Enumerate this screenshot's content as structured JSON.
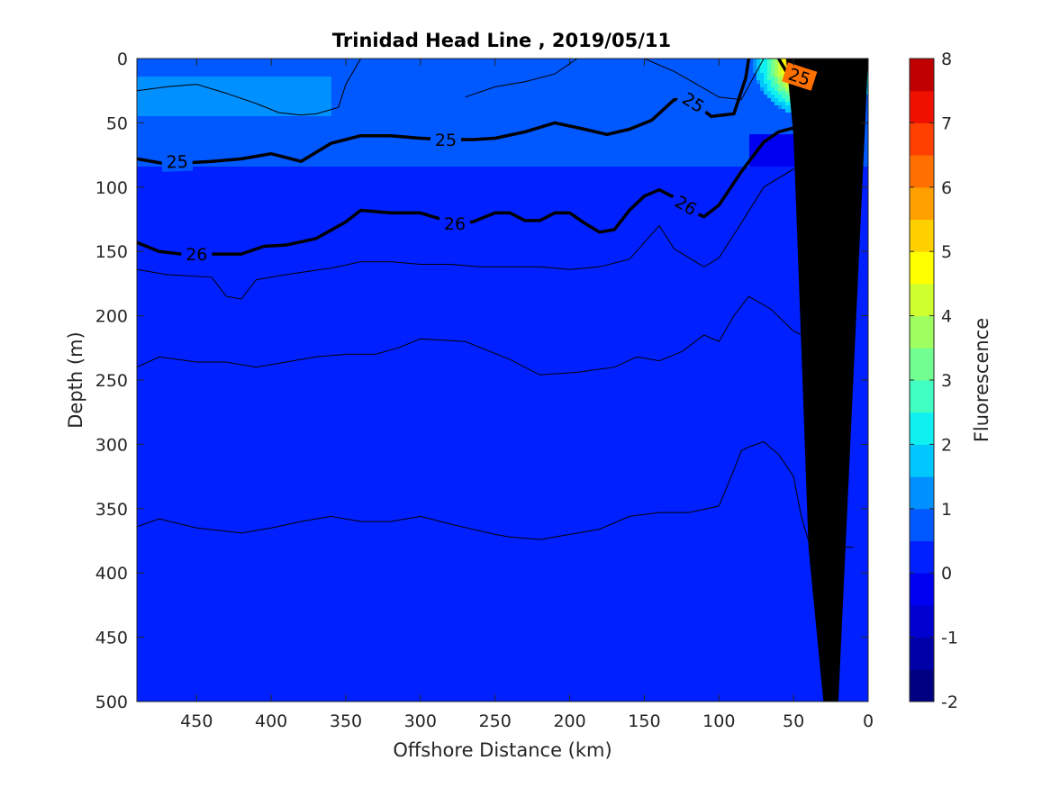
{
  "chart_data": {
    "type": "heatmap",
    "subtype": "filled-contour section",
    "title": "Trinidad Head Line , 2019/05/11",
    "xlabel": "Offshore Distance (km)",
    "ylabel": "Depth (m)",
    "xlim": [
      490,
      0
    ],
    "xdir": "reversed",
    "ylim": [
      0,
      500
    ],
    "ydir": "reversed",
    "x_ticks": [
      "450",
      "400",
      "350",
      "300",
      "250",
      "200",
      "150",
      "100",
      "50",
      "0"
    ],
    "x_tick_values": [
      450,
      400,
      350,
      300,
      250,
      200,
      150,
      100,
      50,
      0
    ],
    "y_ticks": [
      "0",
      "50",
      "100",
      "150",
      "200",
      "250",
      "300",
      "350",
      "400",
      "450",
      "500"
    ],
    "y_tick_values": [
      0,
      50,
      100,
      150,
      200,
      250,
      300,
      350,
      400,
      450,
      500
    ],
    "grid": false,
    "colorbar": {
      "label": "Fluorescence",
      "range": [
        -2,
        8
      ],
      "ticks": [
        "8",
        "7",
        "6",
        "5",
        "4",
        "3",
        "2",
        "1",
        "0",
        "-1",
        "-2"
      ],
      "tick_values": [
        8,
        7,
        6,
        5,
        4,
        3,
        2,
        1,
        0,
        -1,
        -2
      ],
      "levels": [
        -2,
        -1.5,
        -1,
        -0.5,
        0,
        0.5,
        1,
        1.5,
        2,
        2.5,
        3,
        3.5,
        4,
        4.5,
        5,
        5.5,
        6,
        6.5,
        7,
        7.5,
        8
      ],
      "colors": [
        "#000080",
        "#0000a8",
        "#0000d0",
        "#0000f0",
        "#0020ff",
        "#0058ff",
        "#0090ff",
        "#00c8ff",
        "#10f0f0",
        "#40ffc0",
        "#70ff90",
        "#a0ff60",
        "#d0ff30",
        "#ffff00",
        "#ffd000",
        "#ffa000",
        "#ff7000",
        "#ff4000",
        "#f01000",
        "#c00000"
      ]
    },
    "fluorescence_regions": [
      {
        "name": "surface band",
        "x_range": [
          490,
          0
        ],
        "depth_range": [
          0,
          85
        ],
        "value_range": [
          0.5,
          1.0
        ]
      },
      {
        "name": "near-surface maximum",
        "x_range": [
          500,
          360
        ],
        "depth_range": [
          15,
          45
        ],
        "value_range": [
          1.0,
          1.5
        ]
      },
      {
        "name": "coastal bloom",
        "x_range": [
          75,
          10
        ],
        "depth_range": [
          0,
          45
        ],
        "value_range": [
          2,
          8
        ],
        "peak": {
          "x": 35,
          "depth": 5,
          "value": 7.5
        }
      },
      {
        "name": "subsurface low",
        "x_range": [
          80,
          10
        ],
        "depth_range": [
          60,
          85
        ],
        "value_range": [
          -0.5,
          0
        ]
      },
      {
        "name": "deep water",
        "x_range": [
          490,
          0
        ],
        "depth_range": [
          85,
          500
        ],
        "value_range": [
          0,
          0.5
        ]
      }
    ],
    "density_contours": [
      {
        "level": "25",
        "points": [
          [
            490,
            78
          ],
          [
            470,
            82
          ],
          [
            440,
            80
          ],
          [
            420,
            78
          ],
          [
            400,
            74
          ],
          [
            380,
            80
          ],
          [
            360,
            66
          ],
          [
            340,
            60
          ],
          [
            320,
            60
          ],
          [
            300,
            62
          ],
          [
            280,
            63
          ],
          [
            265,
            63
          ],
          [
            250,
            62
          ],
          [
            230,
            57
          ],
          [
            210,
            50
          ],
          [
            190,
            55
          ],
          [
            175,
            59
          ],
          [
            160,
            55
          ],
          [
            145,
            48
          ],
          [
            130,
            32
          ],
          [
            120,
            32
          ],
          [
            105,
            45
          ],
          [
            90,
            43
          ],
          [
            82,
            15
          ],
          [
            80,
            0
          ]
        ]
      },
      {
        "level": "25",
        "points": [
          [
            60,
            0
          ],
          [
            55,
            10
          ],
          [
            45,
            15
          ],
          [
            35,
            14
          ],
          [
            25,
            0
          ]
        ]
      },
      {
        "level": "26",
        "points": [
          [
            490,
            143
          ],
          [
            475,
            150
          ],
          [
            460,
            152
          ],
          [
            440,
            152
          ],
          [
            420,
            152
          ],
          [
            405,
            146
          ],
          [
            390,
            145
          ],
          [
            370,
            140
          ],
          [
            350,
            127
          ],
          [
            340,
            118
          ],
          [
            320,
            120
          ],
          [
            300,
            120
          ],
          [
            280,
            127
          ],
          [
            265,
            127
          ],
          [
            250,
            120
          ],
          [
            240,
            120
          ],
          [
            230,
            126
          ],
          [
            220,
            126
          ],
          [
            210,
            120
          ],
          [
            200,
            120
          ],
          [
            190,
            128
          ],
          [
            180,
            135
          ],
          [
            170,
            133
          ],
          [
            160,
            118
          ],
          [
            150,
            107
          ],
          [
            140,
            102
          ],
          [
            130,
            108
          ],
          [
            120,
            118
          ],
          [
            110,
            123
          ],
          [
            100,
            114
          ],
          [
            85,
            88
          ],
          [
            70,
            65
          ],
          [
            60,
            57
          ],
          [
            50,
            54
          ],
          [
            40,
            53
          ],
          [
            20,
            53
          ],
          [
            10,
            53
          ]
        ]
      }
    ],
    "thin_contours": [
      [
        [
          490,
          164
        ],
        [
          470,
          168
        ],
        [
          440,
          170
        ],
        [
          430,
          185
        ],
        [
          420,
          187
        ],
        [
          410,
          172
        ],
        [
          390,
          168
        ],
        [
          360,
          163
        ],
        [
          340,
          158
        ],
        [
          320,
          158
        ],
        [
          300,
          160
        ],
        [
          280,
          160
        ],
        [
          260,
          162
        ],
        [
          240,
          162
        ],
        [
          220,
          162
        ],
        [
          200,
          164
        ],
        [
          180,
          162
        ],
        [
          160,
          156
        ],
        [
          140,
          130
        ],
        [
          130,
          148
        ],
        [
          110,
          162
        ],
        [
          100,
          155
        ],
        [
          85,
          128
        ],
        [
          70,
          100
        ],
        [
          50,
          86
        ],
        [
          30,
          84
        ],
        [
          20,
          75
        ]
      ],
      [
        [
          490,
          240
        ],
        [
          475,
          232
        ],
        [
          450,
          236
        ],
        [
          430,
          236
        ],
        [
          410,
          240
        ],
        [
          390,
          236
        ],
        [
          370,
          232
        ],
        [
          350,
          230
        ],
        [
          330,
          230
        ],
        [
          315,
          225
        ],
        [
          300,
          218
        ],
        [
          270,
          220
        ],
        [
          240,
          234
        ],
        [
          220,
          246
        ],
        [
          195,
          244
        ],
        [
          170,
          240
        ],
        [
          155,
          232
        ],
        [
          140,
          235
        ],
        [
          125,
          228
        ],
        [
          110,
          215
        ],
        [
          100,
          220
        ],
        [
          90,
          200
        ],
        [
          80,
          185
        ],
        [
          65,
          195
        ],
        [
          50,
          212
        ],
        [
          35,
          220
        ],
        [
          20,
          222
        ]
      ],
      [
        [
          490,
          364
        ],
        [
          475,
          358
        ],
        [
          450,
          365
        ],
        [
          420,
          369
        ],
        [
          400,
          365
        ],
        [
          380,
          360
        ],
        [
          360,
          356
        ],
        [
          340,
          360
        ],
        [
          320,
          360
        ],
        [
          300,
          356
        ],
        [
          280,
          362
        ],
        [
          250,
          370
        ],
        [
          240,
          372
        ],
        [
          220,
          374
        ],
        [
          200,
          370
        ],
        [
          180,
          366
        ],
        [
          160,
          356
        ],
        [
          140,
          353
        ],
        [
          120,
          353
        ],
        [
          100,
          348
        ],
        [
          90,
          320
        ],
        [
          85,
          305
        ],
        [
          80,
          302
        ],
        [
          70,
          298
        ],
        [
          60,
          308
        ],
        [
          50,
          325
        ],
        [
          45,
          355
        ],
        [
          40,
          375
        ],
        [
          30,
          378
        ],
        [
          20,
          380
        ],
        [
          10,
          380
        ]
      ],
      [
        [
          490,
          25
        ],
        [
          470,
          22
        ],
        [
          450,
          20
        ],
        [
          430,
          27
        ],
        [
          410,
          35
        ],
        [
          395,
          42
        ],
        [
          380,
          44
        ],
        [
          370,
          43
        ],
        [
          355,
          38
        ],
        [
          350,
          20
        ],
        [
          340,
          0
        ]
      ],
      [
        [
          270,
          30
        ],
        [
          250,
          22
        ],
        [
          230,
          18
        ],
        [
          210,
          12
        ],
        [
          195,
          0
        ]
      ],
      [
        [
          150,
          0
        ],
        [
          130,
          10
        ],
        [
          100,
          30
        ],
        [
          85,
          32
        ],
        [
          70,
          0
        ]
      ]
    ],
    "bathymetry": {
      "fill": "#000000",
      "outline": [
        [
          0,
          0
        ],
        [
          20,
          500
        ],
        [
          30,
          500
        ],
        [
          40,
          380
        ],
        [
          44,
          250
        ],
        [
          50,
          60
        ],
        [
          55,
          0
        ]
      ]
    }
  }
}
